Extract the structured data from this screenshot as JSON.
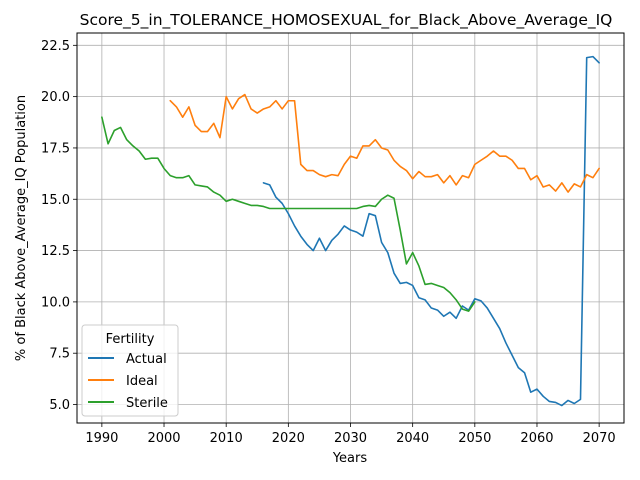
{
  "chart_data": {
    "type": "line",
    "title": "Score_5_in_TOLERANCE_HOMOSEXUAL_for_Black_Above_Average_IQ",
    "xlabel": "Years",
    "ylabel": "% of Black Above_Average_IQ Population",
    "xlim": [
      1986,
      2074
    ],
    "ylim": [
      4.1,
      23.1
    ],
    "xticks": [
      1990,
      2000,
      2010,
      2020,
      2030,
      2040,
      2050,
      2060,
      2070
    ],
    "yticks": [
      5.0,
      7.5,
      10.0,
      12.5,
      15.0,
      17.5,
      20.0,
      22.5
    ],
    "ytick_labels": [
      "5.0",
      "7.5",
      "10.0",
      "12.5",
      "15.0",
      "17.5",
      "20.0",
      "22.5"
    ],
    "grid": true,
    "legend": {
      "title": "Fertility",
      "placement": "lower-left"
    },
    "series": [
      {
        "name": "Actual",
        "color": "#1f77b4",
        "x": [
          2016,
          2017,
          2018,
          2019,
          2020,
          2021,
          2022,
          2023,
          2024,
          2025,
          2026,
          2027,
          2028,
          2029,
          2030,
          2031,
          2032,
          2033,
          2034,
          2035,
          2036,
          2037,
          2038,
          2039,
          2040,
          2041,
          2042,
          2043,
          2044,
          2045,
          2046,
          2047,
          2048,
          2049,
          2050,
          2051,
          2052,
          2053,
          2054,
          2055,
          2056,
          2057,
          2058,
          2059,
          2060,
          2061,
          2062,
          2063,
          2064,
          2065,
          2066,
          2067,
          2068,
          2069,
          2070
        ],
        "values": [
          15.8,
          15.7,
          15.1,
          14.8,
          14.3,
          13.7,
          13.2,
          12.8,
          12.5,
          13.1,
          12.5,
          13.0,
          13.3,
          13.7,
          13.5,
          13.4,
          13.2,
          14.3,
          14.2,
          12.9,
          12.4,
          11.4,
          10.9,
          10.95,
          10.8,
          10.2,
          10.1,
          9.7,
          9.6,
          9.3,
          9.5,
          9.2,
          9.8,
          9.6,
          10.15,
          10.05,
          9.7,
          9.2,
          8.7,
          8.0,
          7.4,
          6.8,
          6.55,
          5.6,
          5.75,
          5.4,
          5.15,
          5.1,
          4.95,
          5.2,
          5.05,
          5.25,
          21.9,
          21.95,
          21.65
        ]
      },
      {
        "name": "Ideal",
        "color": "#ff7f0e",
        "x": [
          2001,
          2002,
          2003,
          2004,
          2005,
          2006,
          2007,
          2008,
          2009,
          2010,
          2011,
          2012,
          2013,
          2014,
          2015,
          2016,
          2017,
          2018,
          2019,
          2020,
          2021,
          2022,
          2023,
          2024,
          2025,
          2026,
          2027,
          2028,
          2029,
          2030,
          2031,
          2032,
          2033,
          2034,
          2035,
          2036,
          2037,
          2038,
          2039,
          2040,
          2041,
          2042,
          2043,
          2044,
          2045,
          2046,
          2047,
          2048,
          2049,
          2050,
          2051,
          2052,
          2053,
          2054,
          2055,
          2056,
          2057,
          2058,
          2059,
          2060,
          2061,
          2062,
          2063,
          2064,
          2065,
          2066,
          2067,
          2068,
          2069,
          2070
        ],
        "values": [
          19.8,
          19.5,
          19.0,
          19.5,
          18.6,
          18.3,
          18.3,
          18.7,
          18.0,
          20.0,
          19.4,
          19.9,
          20.1,
          19.4,
          19.2,
          19.4,
          19.5,
          19.8,
          19.4,
          19.8,
          19.8,
          16.7,
          16.4,
          16.4,
          16.2,
          16.1,
          16.2,
          16.15,
          16.7,
          17.1,
          17.0,
          17.6,
          17.6,
          17.9,
          17.5,
          17.4,
          16.9,
          16.6,
          16.4,
          16.0,
          16.35,
          16.1,
          16.1,
          16.2,
          15.8,
          16.15,
          15.7,
          16.15,
          16.05,
          16.7,
          16.9,
          17.1,
          17.35,
          17.1,
          17.1,
          16.9,
          16.5,
          16.5,
          15.95,
          16.15,
          15.6,
          15.7,
          15.4,
          15.8,
          15.35,
          15.75,
          15.6,
          16.2,
          16.05,
          16.5
        ]
      },
      {
        "name": "Sterile",
        "color": "#2ca02c",
        "x": [
          1990,
          1991,
          1992,
          1993,
          1994,
          1995,
          1996,
          1997,
          1998,
          1999,
          2000,
          2001,
          2002,
          2003,
          2004,
          2005,
          2006,
          2007,
          2008,
          2009,
          2010,
          2011,
          2012,
          2013,
          2014,
          2015,
          2016,
          2017,
          2018,
          2019,
          2020,
          2021,
          2022,
          2023,
          2024,
          2025,
          2026,
          2027,
          2028,
          2029,
          2030,
          2031,
          2032,
          2033,
          2034,
          2035,
          2036,
          2037,
          2038,
          2039,
          2040,
          2041,
          2042,
          2043,
          2044,
          2045,
          2046,
          2047,
          2048,
          2049,
          2050
        ],
        "values": [
          19.0,
          17.7,
          18.35,
          18.5,
          17.9,
          17.6,
          17.35,
          16.95,
          17.0,
          17.0,
          16.5,
          16.15,
          16.05,
          16.05,
          16.15,
          15.7,
          15.65,
          15.6,
          15.35,
          15.2,
          14.9,
          15.0,
          14.9,
          14.8,
          14.7,
          14.7,
          14.65,
          14.55,
          14.55,
          14.55,
          14.55,
          14.55,
          14.55,
          14.55,
          14.55,
          14.55,
          14.55,
          14.55,
          14.55,
          14.55,
          14.55,
          14.55,
          14.65,
          14.7,
          14.65,
          15.0,
          15.2,
          15.05,
          13.5,
          11.85,
          12.4,
          11.75,
          10.85,
          10.9,
          10.8,
          10.7,
          10.45,
          10.1,
          9.65,
          9.55,
          10.0
        ]
      }
    ]
  }
}
